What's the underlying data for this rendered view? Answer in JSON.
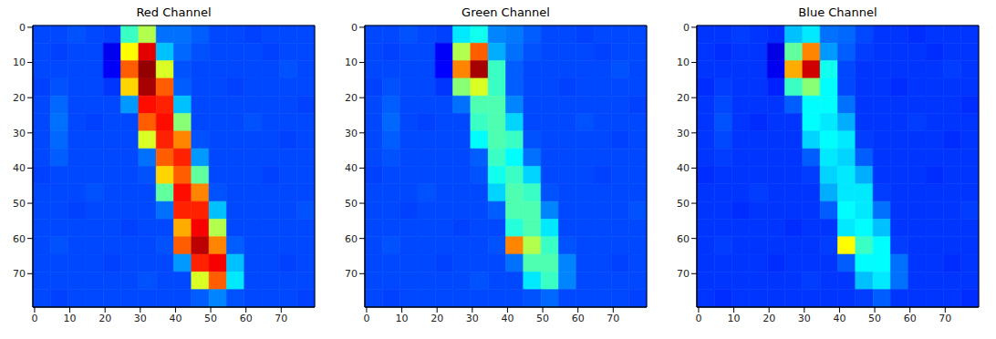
{
  "chart_data": [
    {
      "type": "heatmap",
      "title": "Red Channel",
      "xlim": [
        -0.5,
        79.5
      ],
      "ylim": [
        79.5,
        -0.5
      ],
      "xticks": [
        0,
        10,
        20,
        30,
        40,
        50,
        60,
        70
      ],
      "yticks": [
        0,
        10,
        20,
        30,
        40,
        50,
        60,
        70
      ],
      "color_range": [
        0,
        255
      ],
      "cells": [
        [
          50,
          50,
          52,
          50,
          48,
          110,
          140,
          60,
          60,
          55,
          50,
          50,
          48,
          50,
          50,
          50
        ],
        [
          50,
          48,
          50,
          50,
          28,
          160,
          230,
          80,
          58,
          52,
          50,
          50,
          50,
          48,
          50,
          50
        ],
        [
          50,
          50,
          50,
          50,
          30,
          200,
          250,
          150,
          52,
          50,
          50,
          50,
          50,
          50,
          52,
          50
        ],
        [
          48,
          52,
          50,
          50,
          45,
          170,
          245,
          200,
          55,
          50,
          50,
          48,
          50,
          50,
          50,
          50
        ],
        [
          50,
          58,
          50,
          50,
          50,
          70,
          220,
          215,
          80,
          50,
          50,
          50,
          50,
          50,
          50,
          48
        ],
        [
          50,
          60,
          50,
          48,
          50,
          50,
          200,
          220,
          130,
          50,
          50,
          50,
          52,
          50,
          50,
          50
        ],
        [
          50,
          58,
          50,
          50,
          50,
          50,
          150,
          215,
          190,
          52,
          50,
          50,
          50,
          50,
          48,
          50
        ],
        [
          50,
          55,
          50,
          50,
          50,
          50,
          60,
          200,
          215,
          70,
          50,
          50,
          50,
          50,
          50,
          50
        ],
        [
          48,
          50,
          50,
          50,
          50,
          50,
          52,
          170,
          200,
          120,
          50,
          50,
          50,
          48,
          50,
          50
        ],
        [
          50,
          50,
          50,
          52,
          50,
          50,
          50,
          120,
          220,
          190,
          52,
          50,
          50,
          50,
          50,
          50
        ],
        [
          50,
          50,
          48,
          50,
          50,
          50,
          50,
          60,
          215,
          215,
          80,
          50,
          50,
          50,
          50,
          52
        ],
        [
          50,
          50,
          50,
          50,
          50,
          48,
          50,
          50,
          180,
          225,
          140,
          50,
          50,
          50,
          50,
          50
        ],
        [
          50,
          52,
          50,
          50,
          50,
          50,
          50,
          52,
          200,
          240,
          190,
          55,
          50,
          50,
          50,
          50
        ],
        [
          50,
          50,
          50,
          50,
          48,
          50,
          50,
          50,
          70,
          215,
          225,
          80,
          50,
          50,
          48,
          50
        ],
        [
          50,
          50,
          50,
          50,
          50,
          50,
          52,
          50,
          50,
          150,
          200,
          90,
          50,
          50,
          50,
          50
        ],
        [
          50,
          48,
          50,
          50,
          50,
          50,
          50,
          50,
          50,
          55,
          65,
          52,
          50,
          50,
          50,
          48
        ]
      ]
    },
    {
      "type": "heatmap",
      "title": "Green Channel",
      "xlim": [
        -0.5,
        79.5
      ],
      "ylim": [
        79.5,
        -0.5
      ],
      "xticks": [
        0,
        10,
        20,
        30,
        40,
        50,
        60,
        70
      ],
      "yticks": [
        0,
        10,
        20,
        30,
        40,
        50,
        60,
        70
      ],
      "color_range": [
        0,
        255
      ],
      "cells": [
        [
          50,
          50,
          52,
          50,
          48,
          90,
          100,
          65,
          62,
          55,
          50,
          50,
          48,
          50,
          50,
          50
        ],
        [
          50,
          48,
          50,
          50,
          30,
          140,
          200,
          75,
          60,
          52,
          50,
          50,
          50,
          48,
          50,
          50
        ],
        [
          50,
          50,
          50,
          50,
          32,
          190,
          245,
          110,
          55,
          50,
          50,
          50,
          50,
          50,
          52,
          50
        ],
        [
          48,
          52,
          50,
          50,
          45,
          130,
          150,
          110,
          55,
          50,
          50,
          48,
          50,
          50,
          50,
          50
        ],
        [
          50,
          55,
          50,
          50,
          50,
          60,
          115,
          115,
          65,
          50,
          50,
          50,
          50,
          50,
          50,
          48
        ],
        [
          50,
          58,
          50,
          48,
          50,
          50,
          110,
          115,
          85,
          50,
          50,
          50,
          52,
          50,
          50,
          50
        ],
        [
          50,
          55,
          50,
          50,
          50,
          50,
          95,
          115,
          110,
          52,
          50,
          50,
          50,
          50,
          48,
          50
        ],
        [
          50,
          52,
          50,
          50,
          50,
          50,
          55,
          110,
          95,
          60,
          50,
          50,
          50,
          50,
          50,
          50
        ],
        [
          48,
          50,
          50,
          50,
          50,
          50,
          52,
          100,
          110,
          85,
          50,
          50,
          50,
          48,
          50,
          50
        ],
        [
          50,
          50,
          50,
          52,
          50,
          50,
          50,
          85,
          115,
          110,
          52,
          50,
          50,
          50,
          50,
          50
        ],
        [
          50,
          50,
          48,
          50,
          50,
          50,
          50,
          55,
          115,
          115,
          65,
          50,
          50,
          50,
          50,
          52
        ],
        [
          50,
          50,
          50,
          50,
          50,
          48,
          50,
          50,
          105,
          115,
          90,
          50,
          50,
          50,
          50,
          50
        ],
        [
          50,
          52,
          50,
          50,
          50,
          50,
          50,
          52,
          190,
          140,
          110,
          52,
          50,
          50,
          50,
          50
        ],
        [
          50,
          50,
          50,
          50,
          48,
          50,
          50,
          50,
          60,
          115,
          115,
          65,
          50,
          50,
          48,
          50
        ],
        [
          50,
          50,
          50,
          50,
          50,
          50,
          52,
          50,
          50,
          90,
          110,
          65,
          50,
          50,
          50,
          50
        ],
        [
          50,
          48,
          50,
          50,
          50,
          50,
          50,
          50,
          50,
          52,
          58,
          50,
          50,
          50,
          50,
          48
        ]
      ]
    },
    {
      "type": "heatmap",
      "title": "Blue Channel",
      "xlim": [
        -0.5,
        79.5
      ],
      "ylim": [
        79.5,
        -0.5
      ],
      "xticks": [
        0,
        10,
        20,
        30,
        40,
        50,
        60,
        70
      ],
      "yticks": [
        0,
        10,
        20,
        30,
        40,
        50,
        60,
        70
      ],
      "color_range": [
        0,
        255
      ],
      "cells": [
        [
          45,
          45,
          47,
          45,
          43,
          80,
          90,
          60,
          58,
          50,
          45,
          45,
          43,
          45,
          45,
          45
        ],
        [
          45,
          43,
          45,
          45,
          25,
          120,
          190,
          70,
          55,
          47,
          45,
          45,
          45,
          43,
          45,
          45
        ],
        [
          45,
          45,
          45,
          45,
          28,
          180,
          235,
          100,
          50,
          45,
          45,
          45,
          45,
          45,
          47,
          45
        ],
        [
          43,
          47,
          45,
          45,
          40,
          110,
          130,
          95,
          50,
          45,
          45,
          43,
          45,
          45,
          45,
          45
        ],
        [
          45,
          50,
          45,
          45,
          45,
          55,
          95,
          95,
          60,
          45,
          45,
          45,
          45,
          45,
          45,
          43
        ],
        [
          45,
          52,
          45,
          43,
          45,
          45,
          95,
          90,
          75,
          45,
          45,
          45,
          47,
          45,
          45,
          45
        ],
        [
          45,
          50,
          45,
          45,
          45,
          45,
          85,
          95,
          90,
          47,
          45,
          45,
          45,
          45,
          43,
          45
        ],
        [
          45,
          47,
          45,
          45,
          45,
          45,
          55,
          90,
          85,
          55,
          45,
          45,
          45,
          45,
          45,
          45
        ],
        [
          43,
          45,
          45,
          45,
          45,
          45,
          47,
          85,
          90,
          75,
          45,
          45,
          45,
          43,
          45,
          45
        ],
        [
          45,
          45,
          45,
          47,
          45,
          45,
          45,
          75,
          90,
          90,
          47,
          45,
          45,
          45,
          45,
          45
        ],
        [
          45,
          45,
          43,
          45,
          45,
          45,
          45,
          55,
          95,
          90,
          60,
          45,
          45,
          45,
          45,
          47
        ],
        [
          45,
          45,
          45,
          45,
          45,
          43,
          45,
          45,
          90,
          95,
          80,
          45,
          45,
          45,
          45,
          45
        ],
        [
          45,
          47,
          45,
          45,
          45,
          45,
          45,
          47,
          160,
          110,
          95,
          47,
          45,
          45,
          45,
          45
        ],
        [
          45,
          45,
          45,
          45,
          43,
          45,
          45,
          45,
          55,
          95,
          95,
          60,
          45,
          45,
          43,
          45
        ],
        [
          45,
          45,
          45,
          45,
          45,
          45,
          47,
          45,
          45,
          80,
          90,
          60,
          45,
          45,
          45,
          45
        ],
        [
          45,
          43,
          45,
          45,
          45,
          45,
          45,
          45,
          45,
          47,
          55,
          45,
          45,
          45,
          45,
          43
        ]
      ]
    }
  ]
}
